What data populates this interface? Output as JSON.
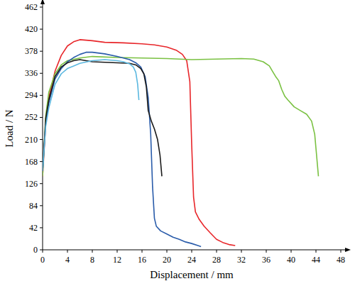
{
  "chart_data": {
    "type": "line",
    "x_label": "Displacement / mm",
    "y_label": "Load / N",
    "xlim": [
      0,
      48
    ],
    "xticks": [
      0,
      4,
      8,
      12,
      16,
      20,
      24,
      28,
      32,
      36,
      40,
      44,
      48
    ],
    "ylim": [
      0,
      462
    ],
    "yticks": [
      0,
      42,
      84,
      126,
      168,
      210,
      252,
      294,
      336,
      378,
      420,
      462
    ],
    "grid": false,
    "series": [
      {
        "color": "#e8262a",
        "x": [
          0,
          0.5,
          1,
          2,
          3,
          4,
          5,
          6,
          8,
          10,
          13,
          16,
          18,
          20,
          21.5,
          22.5,
          23.2,
          23.7,
          24,
          24.3,
          24.6,
          25.2,
          26,
          27,
          28,
          29,
          30,
          31
        ],
        "values": [
          140,
          240,
          290,
          340,
          370,
          388,
          396,
          400,
          398,
          395,
          394,
          392,
          390,
          386,
          380,
          372,
          360,
          320,
          200,
          100,
          72,
          58,
          45,
          32,
          20,
          14,
          10,
          8
        ]
      },
      {
        "color": "#7ac142",
        "x": [
          0,
          0.5,
          1,
          2,
          3,
          4,
          6,
          8,
          12,
          16,
          20,
          24,
          28,
          32,
          34,
          35.5,
          36.5,
          37,
          37.5,
          38,
          38.5,
          39,
          39.5,
          40.5,
          41.5,
          42.5,
          43.3,
          43.8,
          44.1,
          44.4
        ],
        "values": [
          140,
          255,
          300,
          335,
          352,
          360,
          365,
          368,
          366,
          365,
          364,
          362,
          363,
          364,
          363,
          358,
          350,
          340,
          330,
          322,
          305,
          292,
          285,
          272,
          265,
          258,
          245,
          220,
          180,
          140
        ]
      },
      {
        "color": "#2a5caa",
        "x": [
          0,
          0.5,
          1,
          2,
          3,
          4,
          5,
          6,
          7,
          8,
          10,
          12,
          14,
          15,
          15.8,
          16.5,
          17,
          17.4,
          17.7,
          18,
          18.3,
          19,
          20,
          21,
          22,
          23,
          24,
          25,
          25.5
        ],
        "values": [
          150,
          240,
          280,
          325,
          345,
          358,
          366,
          372,
          376,
          376,
          373,
          368,
          362,
          356,
          348,
          330,
          290,
          220,
          120,
          60,
          45,
          36,
          30,
          24,
          20,
          15,
          12,
          8,
          6
        ]
      },
      {
        "color": "#1a1a1a",
        "x": [
          0,
          0.5,
          1,
          2,
          3,
          4,
          5,
          6,
          8,
          10,
          12,
          14,
          15,
          15.8,
          16.3,
          16.7,
          17,
          17.5,
          18,
          18.5,
          18.9,
          19.2
        ],
        "values": [
          150,
          250,
          285,
          330,
          348,
          356,
          360,
          362,
          358,
          357,
          356,
          355,
          352,
          345,
          335,
          310,
          265,
          245,
          230,
          210,
          180,
          140
        ]
      },
      {
        "color": "#5bb8e0",
        "x": [
          0,
          0.5,
          1,
          2,
          3,
          4,
          5,
          6,
          8,
          10,
          12,
          13,
          14,
          14.6,
          15,
          15.3,
          15.5
        ],
        "values": [
          150,
          235,
          270,
          315,
          335,
          345,
          350,
          355,
          360,
          362,
          360,
          358,
          354,
          348,
          338,
          315,
          285
        ]
      }
    ]
  }
}
